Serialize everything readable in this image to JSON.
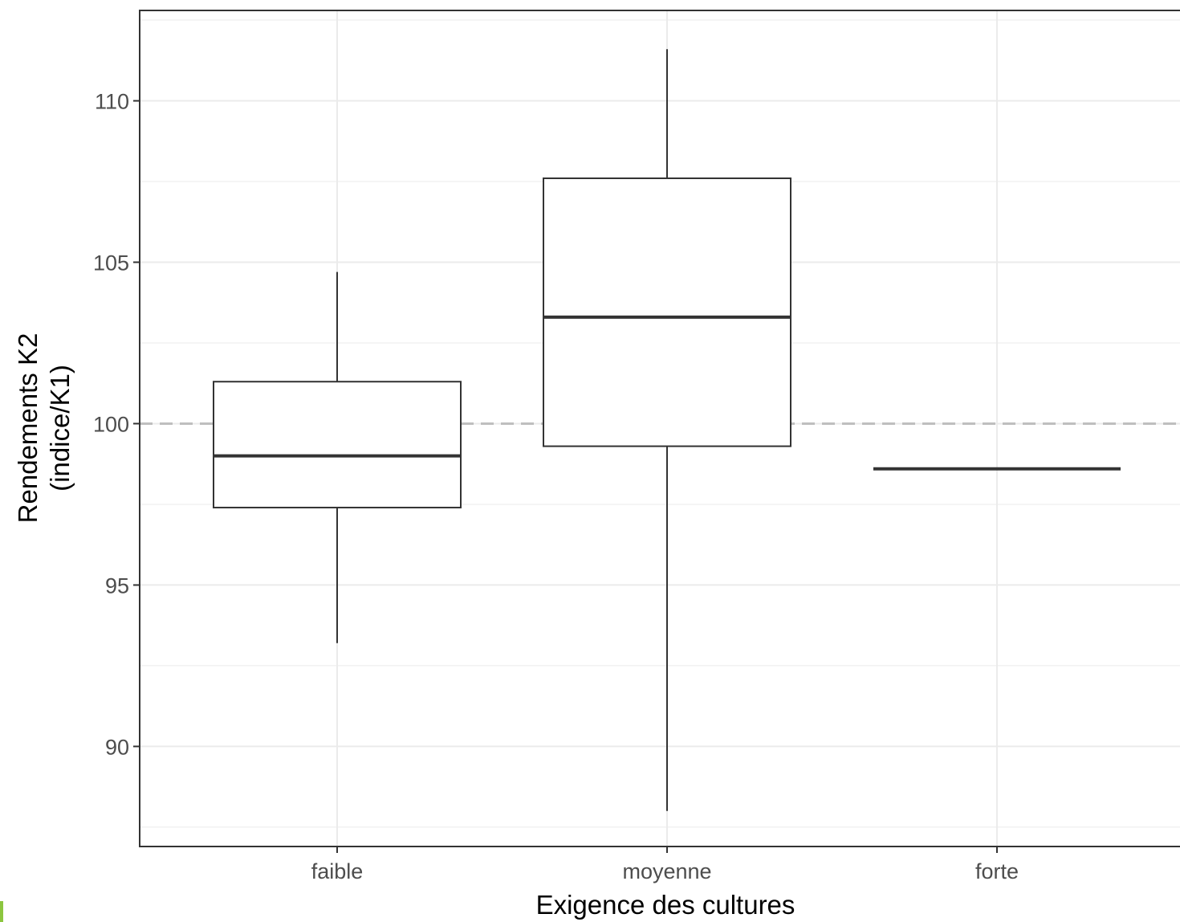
{
  "chart_data": {
    "type": "boxplot",
    "title": "",
    "xlabel": "Exigence des cultures",
    "ylabel_lines": [
      "Rendements K2",
      "(indice/K1)"
    ],
    "categories": [
      "faible",
      "moyenne",
      "forte"
    ],
    "boxes": [
      {
        "category": "faible",
        "whisker_low": 93.2,
        "q1": 97.4,
        "median": 99.0,
        "q3": 101.3,
        "whisker_high": 104.7
      },
      {
        "category": "moyenne",
        "whisker_low": 88.0,
        "q1": 99.3,
        "median": 103.3,
        "q3": 107.6,
        "whisker_high": 111.6
      },
      {
        "category": "forte",
        "whisker_low": 98.6,
        "q1": 98.6,
        "median": 98.6,
        "q3": 98.6,
        "whisker_high": 98.6
      }
    ],
    "reference_line": {
      "y": 100,
      "style": "dashed",
      "color": "#bfbfbf"
    },
    "yticks": [
      90,
      95,
      100,
      105,
      110
    ],
    "ytick_labels": [
      "90",
      "95",
      "100",
      "105",
      "110"
    ],
    "ylim": [
      86.9,
      112.8
    ],
    "grid": true,
    "theme": "bw",
    "colors": {
      "box_line": "#333333",
      "grid": "#ebebeb",
      "panel_border": "#333333",
      "tick_text": "#4d4d4d"
    }
  }
}
